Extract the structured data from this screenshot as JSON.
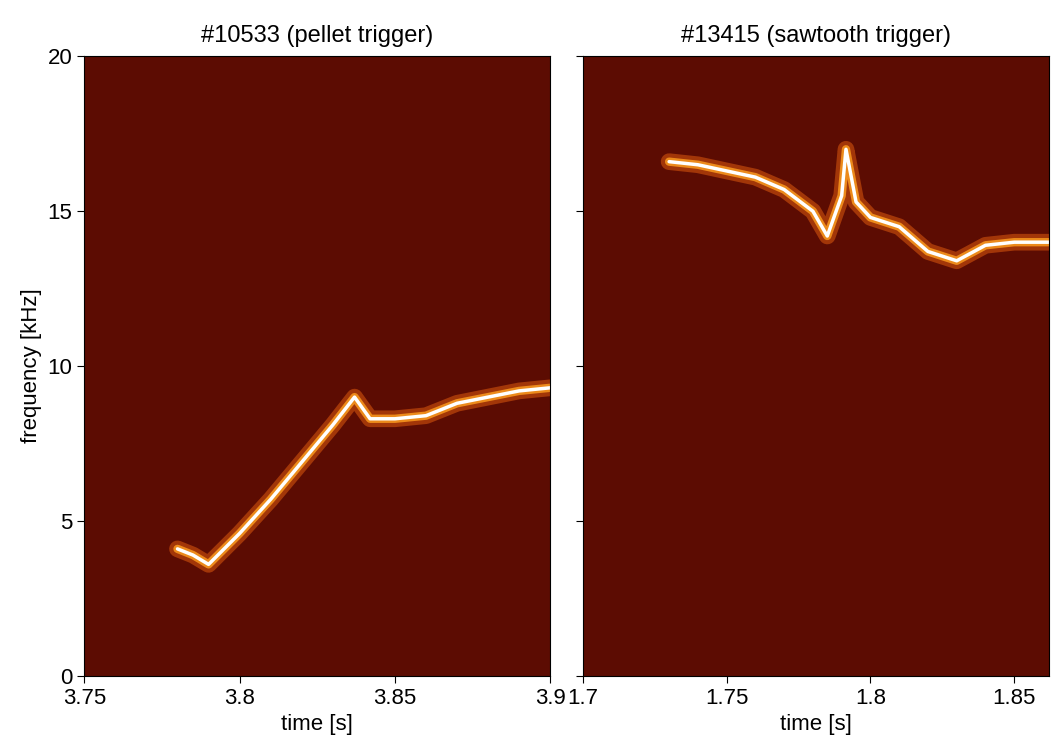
{
  "chart_data": [
    {
      "type": "line",
      "title": "#10533 (pellet trigger)",
      "xlabel": "time [s]",
      "ylabel": "frequency [kHz]",
      "x": [
        3.78,
        3.785,
        3.79,
        3.8,
        3.81,
        3.82,
        3.83,
        3.837,
        3.842,
        3.85,
        3.86,
        3.87,
        3.88,
        3.89,
        3.9
      ],
      "values": [
        4.1,
        3.9,
        3.6,
        4.6,
        5.7,
        6.9,
        8.1,
        9.0,
        8.3,
        8.3,
        8.4,
        8.8,
        9.0,
        9.2,
        9.3
      ],
      "color": "#ffffff",
      "line_style": "solid",
      "xlim": [
        3.75,
        3.9
      ],
      "xticks": [
        3.75,
        3.8,
        3.85,
        3.9
      ],
      "ylim": [
        0,
        20
      ],
      "yticks": [
        0,
        5,
        10,
        15,
        20
      ]
    },
    {
      "type": "line",
      "title": "#13415 (sawtooth trigger)",
      "xlabel": "time [s]",
      "x": [
        1.73,
        1.74,
        1.75,
        1.76,
        1.77,
        1.78,
        1.785,
        1.79,
        1.7915,
        1.795,
        1.8,
        1.81,
        1.82,
        1.83,
        1.84,
        1.85,
        1.862
      ],
      "values": [
        16.6,
        16.5,
        16.3,
        16.1,
        15.7,
        15.0,
        14.2,
        15.5,
        17.0,
        15.3,
        14.8,
        14.5,
        13.7,
        13.4,
        13.9,
        14.0,
        14.0
      ],
      "color": "#ffffff",
      "line_style": "solid",
      "tick_labels": "x",
      "xlim": [
        1.7,
        1.862
      ],
      "xticks": [
        1.7,
        1.75,
        1.8,
        1.85
      ],
      "ylim": [
        0,
        20
      ],
      "yticks": [
        0,
        5,
        10,
        15,
        20
      ]
    }
  ]
}
